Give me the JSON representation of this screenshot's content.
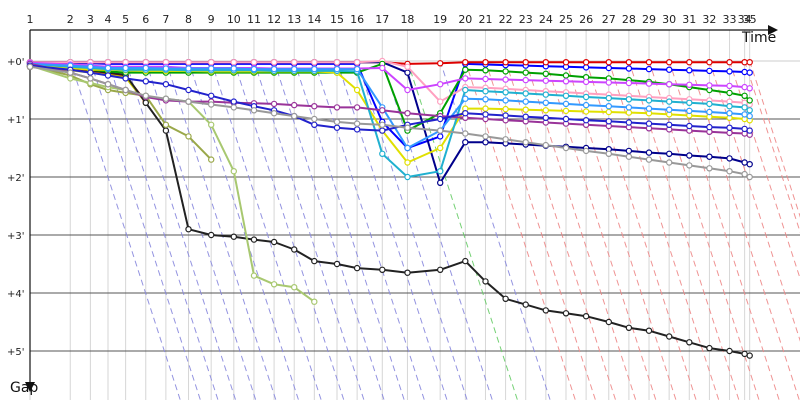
{
  "chart_data": {
    "type": "line",
    "xlabel": "Time",
    "ylabel": "Gap",
    "x_ticks": [
      "1",
      "2",
      "3",
      "4",
      "5",
      "6",
      "7",
      "8",
      "9",
      "10",
      "11",
      "12",
      "13",
      "14",
      "15",
      "16",
      "17",
      "18",
      "19",
      "20",
      "21",
      "22",
      "23",
      "24",
      "25",
      "26",
      "27",
      "28",
      "29",
      "30",
      "31",
      "32",
      "33",
      "34",
      "35"
    ],
    "y_ticks": [
      "+0'",
      "+1'",
      "+2'",
      "+3'",
      "+4'",
      "+5'"
    ],
    "ylim": [
      0,
      5
    ],
    "x_scale_note": "laps at non-uniform time positions",
    "lap_times": [
      0,
      1.6,
      2.4,
      3.1,
      3.8,
      4.6,
      5.4,
      6.3,
      7.2,
      8.1,
      8.9,
      9.7,
      10.5,
      11.3,
      12.2,
      13.0,
      14.0,
      15.0,
      16.3,
      17.3,
      18.1,
      18.9,
      19.7,
      20.5,
      21.3,
      22.1,
      23.0,
      23.8,
      24.6,
      25.4,
      26.2,
      27.0,
      27.8,
      28.4,
      28.6
    ],
    "time_end": 30.6,
    "series": [
      {
        "color": "#e00000",
        "values": [
          0.1,
          0.14,
          0.18,
          0.22,
          0.26,
          0.7
        ]
      },
      {
        "color": "#c8c800",
        "values": [
          0.1,
          0.16,
          0.2,
          0.24,
          0.28,
          0.72
        ]
      },
      {
        "color": "#222222",
        "values": [
          0.1,
          0.12,
          0.16,
          0.2,
          0.24,
          0.72,
          1.2,
          2.9,
          3.0,
          3.03,
          3.08,
          3.12,
          3.25,
          3.45,
          3.5,
          3.57,
          3.6,
          3.65,
          3.6,
          3.45,
          3.8,
          4.1,
          4.2,
          4.3,
          4.35,
          4.4,
          4.5,
          4.6,
          4.65,
          4.75,
          4.85,
          4.95,
          5.0,
          5.05,
          5.08
        ]
      },
      {
        "color": "#9aa84a",
        "values": [
          0.08,
          0.25,
          0.4,
          0.5,
          0.55,
          0.6,
          1.1,
          1.3,
          1.7
        ]
      },
      {
        "color": "#a8c870",
        "values": [
          0.08,
          0.3,
          0.38,
          0.45,
          0.5,
          0.62,
          0.65,
          0.7,
          1.1,
          1.9,
          3.7,
          3.85,
          3.9,
          4.15
        ]
      },
      {
        "color": "#0000ff",
        "values": [
          0.03,
          0.04,
          0.04,
          0.05,
          0.05,
          0.05,
          0.05,
          0.05,
          0.05,
          0.05,
          0.05,
          0.05,
          0.05,
          0.05,
          0.05,
          0.05,
          1.05,
          1.5,
          1.3,
          0.05,
          0.06,
          0.07,
          0.08,
          0.09,
          0.1,
          0.11,
          0.12,
          0.13,
          0.14,
          0.15,
          0.16,
          0.17,
          0.18,
          0.19,
          0.2
        ]
      },
      {
        "color": "#dd0000",
        "values": [
          0.02,
          0.02,
          0.02,
          0.02,
          0.02,
          0.02,
          0.02,
          0.02,
          0.02,
          0.02,
          0.02,
          0.02,
          0.02,
          0.02,
          0.02,
          0.02,
          0.02,
          0.05,
          0.04,
          0.02,
          0.02,
          0.02,
          0.02,
          0.02,
          0.02,
          0.02,
          0.02,
          0.02,
          0.02,
          0.02,
          0.02,
          0.02,
          0.02,
          0.02,
          0.02
        ]
      },
      {
        "color": "#00008b",
        "values": [
          0.02,
          0.02,
          0.02,
          0.02,
          0.02,
          0.02,
          0.02,
          0.02,
          0.02,
          0.02,
          0.02,
          0.02,
          0.02,
          0.02,
          0.02,
          0.02,
          0.02,
          0.2,
          2.1,
          1.4,
          1.4,
          1.42,
          1.44,
          1.46,
          1.48,
          1.5,
          1.52,
          1.55,
          1.58,
          1.6,
          1.63,
          1.65,
          1.68,
          1.75,
          1.78
        ]
      },
      {
        "color": "#ffa0c0",
        "values": [
          0.02,
          0.02,
          0.02,
          0.02,
          0.02,
          0.02,
          0.02,
          0.02,
          0.02,
          0.02,
          0.02,
          0.02,
          0.02,
          0.02,
          0.02,
          0.02,
          0.0,
          0.1,
          0.7,
          0.45,
          0.46,
          0.48,
          0.5,
          0.52,
          0.54,
          0.56,
          0.58,
          0.6,
          0.62,
          0.64,
          0.66,
          0.68,
          0.7,
          0.72,
          0.75
        ]
      },
      {
        "color": "#00a000",
        "values": [
          0.04,
          0.1,
          0.15,
          0.18,
          0.2,
          0.2,
          0.2,
          0.2,
          0.2,
          0.2,
          0.2,
          0.2,
          0.2,
          0.2,
          0.2,
          0.2,
          0.05,
          1.2,
          0.9,
          0.15,
          0.16,
          0.18,
          0.2,
          0.22,
          0.25,
          0.28,
          0.3,
          0.33,
          0.36,
          0.4,
          0.45,
          0.5,
          0.55,
          0.6,
          0.68
        ]
      },
      {
        "color": "#cc44ff",
        "values": [
          0.03,
          0.06,
          0.08,
          0.1,
          0.1,
          0.1,
          0.1,
          0.12,
          0.12,
          0.12,
          0.12,
          0.13,
          0.13,
          0.13,
          0.13,
          0.13,
          0.12,
          0.5,
          0.4,
          0.3,
          0.31,
          0.32,
          0.33,
          0.34,
          0.35,
          0.36,
          0.37,
          0.38,
          0.39,
          0.4,
          0.41,
          0.42,
          0.43,
          0.45,
          0.47
        ]
      },
      {
        "color": "#e0e000",
        "values": [
          0.08,
          0.12,
          0.15,
          0.15,
          0.16,
          0.17,
          0.17,
          0.17,
          0.18,
          0.18,
          0.18,
          0.18,
          0.18,
          0.18,
          0.2,
          0.5,
          1.2,
          1.75,
          1.5,
          0.82,
          0.82,
          0.83,
          0.84,
          0.85,
          0.86,
          0.87,
          0.88,
          0.89,
          0.9,
          0.92,
          0.94,
          0.96,
          0.98,
          1.0,
          1.02
        ]
      },
      {
        "color": "#20b0d0",
        "values": [
          0.05,
          0.1,
          0.12,
          0.14,
          0.15,
          0.15,
          0.15,
          0.16,
          0.16,
          0.16,
          0.16,
          0.17,
          0.17,
          0.17,
          0.17,
          0.18,
          1.6,
          2.0,
          1.9,
          0.5,
          0.52,
          0.54,
          0.56,
          0.58,
          0.6,
          0.62,
          0.64,
          0.66,
          0.68,
          0.7,
          0.72,
          0.74,
          0.78,
          0.8,
          0.85
        ]
      },
      {
        "color": "#3399ff",
        "values": [
          0.05,
          0.08,
          0.1,
          0.12,
          0.12,
          0.12,
          0.13,
          0.13,
          0.13,
          0.13,
          0.14,
          0.14,
          0.14,
          0.14,
          0.14,
          0.14,
          0.8,
          1.5,
          1.2,
          0.65,
          0.66,
          0.68,
          0.7,
          0.72,
          0.74,
          0.76,
          0.78,
          0.8,
          0.82,
          0.84,
          0.86,
          0.88,
          0.9,
          0.92,
          0.95
        ]
      },
      {
        "color": "#993399",
        "values": [
          0.05,
          0.2,
          0.3,
          0.4,
          0.5,
          0.62,
          0.68,
          0.7,
          0.7,
          0.72,
          0.73,
          0.74,
          0.76,
          0.78,
          0.8,
          0.8,
          0.85,
          0.9,
          0.95,
          0.98,
          1.0,
          1.02,
          1.04,
          1.06,
          1.08,
          1.1,
          1.12,
          1.14,
          1.16,
          1.18,
          1.2,
          1.22,
          1.24,
          1.25,
          1.27
        ]
      },
      {
        "color": "#2222cc",
        "values": [
          0.08,
          0.15,
          0.2,
          0.25,
          0.3,
          0.35,
          0.4,
          0.5,
          0.6,
          0.7,
          0.78,
          0.85,
          0.95,
          1.1,
          1.15,
          1.18,
          1.2,
          1.1,
          1.0,
          0.9,
          0.92,
          0.94,
          0.96,
          0.98,
          1.0,
          1.02,
          1.04,
          1.06,
          1.08,
          1.1,
          1.12,
          1.14,
          1.15,
          1.17,
          1.2
        ]
      },
      {
        "color": "#999999",
        "values": [
          0.1,
          0.2,
          0.3,
          0.4,
          0.5,
          0.6,
          0.65,
          0.7,
          0.75,
          0.8,
          0.85,
          0.9,
          0.95,
          1.0,
          1.05,
          1.08,
          1.1,
          1.15,
          1.2,
          1.25,
          1.3,
          1.35,
          1.4,
          1.45,
          1.5,
          1.55,
          1.6,
          1.65,
          1.7,
          1.75,
          1.8,
          1.85,
          1.9,
          1.95,
          2.0
        ]
      }
    ],
    "pit_stop_line_colors": [
      "#8888dd",
      "#66cc66",
      "#ee8888"
    ]
  }
}
